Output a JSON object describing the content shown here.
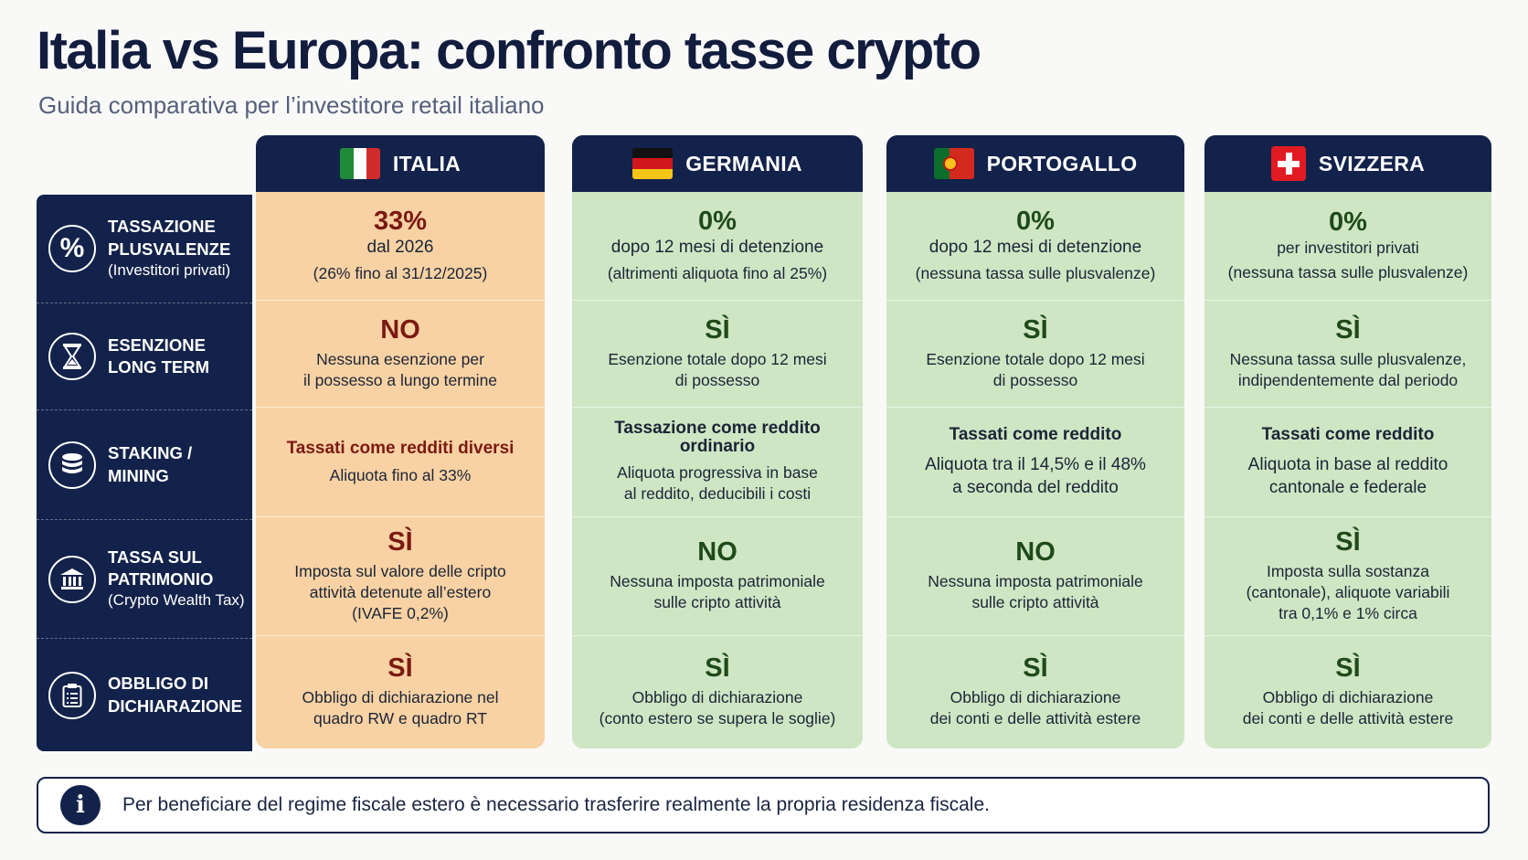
{
  "page": {
    "title": "Italia vs Europa: confronto tasse crypto",
    "subtitle": "Guida comparativa per l’investitore retail italiano"
  },
  "rows": [
    {
      "icon": "percent-icon",
      "title": "TASSAZIONE PLUSVALENZE",
      "title_l1": "TASSAZIONE",
      "title_l2": "PLUSVALENZE",
      "subtitle": "(Investitori privati)"
    },
    {
      "icon": "hourglass-icon",
      "title_l1": "ESENZIONE",
      "title_l2": "LONG TERM",
      "subtitle": ""
    },
    {
      "icon": "coins-icon",
      "title_l1": "STAKING /",
      "title_l2": "MINING",
      "subtitle": ""
    },
    {
      "icon": "bank-icon",
      "title_l1": "TASSA SUL",
      "title_l2": "PATRIMONIO",
      "subtitle": "(Crypto Wealth Tax)"
    },
    {
      "icon": "clipboard-icon",
      "title_l1": "OBBLIGO DI",
      "title_l2": "DICHIARAZIONE",
      "subtitle": ""
    }
  ],
  "countries": [
    {
      "name": "ITALIA",
      "flag": "italy-flag",
      "theme": "orange",
      "cells": [
        {
          "big": "33%",
          "l1": "dal 2026",
          "l2": "(26% fino al 31/12/2025)"
        },
        {
          "big": "NO",
          "l1": "Nessuna esenzione per",
          "l2": "il possesso a lungo termine"
        },
        {
          "heading": "Tassati come redditi diversi",
          "l1": "Aliquota fino al 33%"
        },
        {
          "big": "SÌ",
          "l1": "Imposta sul valore delle cripto",
          "l2": "attività detenute all’estero",
          "l3": "(IVAFE 0,2%)"
        },
        {
          "big": "SÌ",
          "l1": "Obbligo di dichiarazione nel",
          "l2": "quadro RW e quadro RT"
        }
      ]
    },
    {
      "name": "GERMANIA",
      "flag": "germany-flag",
      "theme": "green",
      "cells": [
        {
          "big": "0%",
          "l1": "dopo 12 mesi di detenzione",
          "l2": "(altrimenti aliquota fino al 25%)"
        },
        {
          "big": "SÌ",
          "l1": "Esenzione totale dopo 12 mesi",
          "l2": "di possesso"
        },
        {
          "heading": "Tassazione come reddito",
          "heading2": "ordinario",
          "l1": "Aliquota progressiva in base",
          "l2": "al reddito, deducibili i costi"
        },
        {
          "big": "NO",
          "l1": "Nessuna imposta patrimoniale",
          "l2": "sulle cripto attività"
        },
        {
          "big": "SÌ",
          "l1": "Obbligo di dichiarazione",
          "l2": "(conto estero se supera le soglie)"
        }
      ]
    },
    {
      "name": "PORTOGALLO",
      "flag": "portugal-flag",
      "theme": "green",
      "cells": [
        {
          "big": "0%",
          "l1": "dopo 12 mesi di detenzione",
          "l2": "(nessuna tassa sulle plusvalenze)"
        },
        {
          "big": "SÌ",
          "l1": "Esenzione totale dopo 12 mesi",
          "l2": "di possesso"
        },
        {
          "heading": "Tassati come reddito",
          "l1": "Aliquota tra il 14,5% e il 48%",
          "l2": "a seconda del reddito"
        },
        {
          "big": "NO",
          "l1": "Nessuna imposta patrimoniale",
          "l2": "sulle cripto attività"
        },
        {
          "big": "SÌ",
          "l1": "Obbligo di dichiarazione",
          "l2": "dei conti e delle attività estere"
        }
      ]
    },
    {
      "name": "SVIZZERA",
      "flag": "switzerland-flag",
      "theme": "green",
      "cells": [
        {
          "big": "0%",
          "l1": "per investitori privati",
          "l2": "(nessuna tassa sulle plusvalenze)"
        },
        {
          "big": "SÌ",
          "l1": "Nessuna tassa sulle plusvalenze,",
          "l2": "indipendentemente dal periodo"
        },
        {
          "heading": "Tassati come reddito",
          "l1": "Aliquota in base al reddito",
          "l2": "cantonale e federale"
        },
        {
          "big": "SÌ",
          "l1": "Imposta sulla sostanza",
          "l2": "(cantonale), aliquote variabili",
          "l3": "tra 0,1% e 1% circa"
        },
        {
          "big": "SÌ",
          "l1": "Obbligo di dichiarazione",
          "l2": "dei conti e delle attività estere"
        }
      ]
    }
  ],
  "info": {
    "icon": "info-icon",
    "symbol": "i",
    "text": "Per beneficiare del regime fiscale estero è necessario trasferire realmente la propria residenza fiscale."
  },
  "colors": {
    "navy": "#13224a",
    "italy_bg": "#f8d2a4",
    "others_bg": "#cfe6c4",
    "negative_text": "#7a1a12",
    "positive_text": "#1f4a1a"
  }
}
